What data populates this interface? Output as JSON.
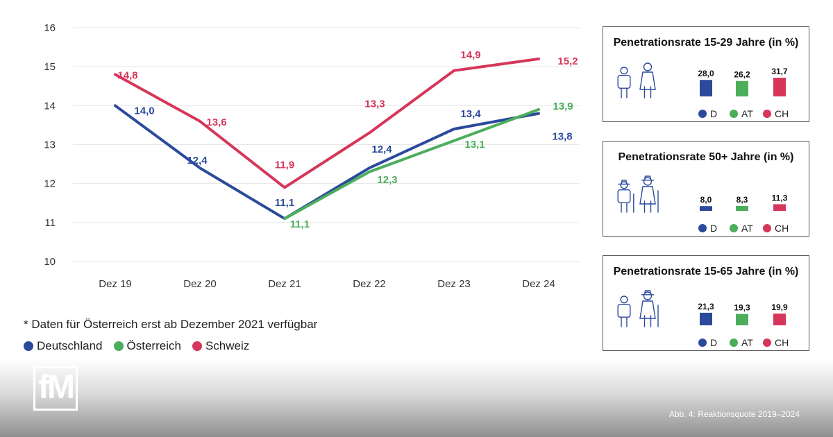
{
  "chart_data": {
    "type": "line",
    "categories": [
      "Dez 19",
      "Dez 20",
      "Dez 21",
      "Dez 22",
      "Dez 23",
      "Dez 24"
    ],
    "ylim": [
      10,
      16
    ],
    "yticks": [
      "10",
      "11",
      "12",
      "13",
      "14",
      "15",
      "16"
    ],
    "grid": true,
    "series": [
      {
        "name": "Deutschland",
        "color": "#2b4a9b",
        "values": [
          14.0,
          12.4,
          11.1,
          12.4,
          13.4,
          13.8
        ],
        "labels": [
          "14,0",
          "12,4",
          "11,1",
          "12,4",
          "13,4",
          "13,8"
        ]
      },
      {
        "name": "Österreich",
        "color": "#4cae5b",
        "values": [
          null,
          null,
          11.1,
          12.3,
          13.1,
          13.9
        ],
        "labels": [
          null,
          null,
          "11,1",
          "12,3",
          "13,1",
          "13,9"
        ]
      },
      {
        "name": "Schweiz",
        "color": "#d6365a",
        "values": [
          14.8,
          13.6,
          11.9,
          13.3,
          14.9,
          15.2
        ],
        "labels": [
          "14,8",
          "13,6",
          "11,9",
          "13,3",
          "14,9",
          "15,2"
        ]
      }
    ]
  },
  "footnote": "* Daten für Österreich erst ab Dezember 2021 verfügbar",
  "legend": [
    "Deutschland",
    "Österreich",
    "Schweiz"
  ],
  "panels": [
    {
      "title": "Penetrationsrate 15-29 Jahre (in %)",
      "icon": "young-people-icon",
      "bars": [
        {
          "key": "D",
          "value": 28.0,
          "label": "28,0"
        },
        {
          "key": "AT",
          "value": 26.2,
          "label": "26,2"
        },
        {
          "key": "CH",
          "value": 31.7,
          "label": "31,7"
        }
      ]
    },
    {
      "title": "Penetrationsrate 50+ Jahre (in %)",
      "icon": "elderly-people-icon",
      "bars": [
        {
          "key": "D",
          "value": 8.0,
          "label": "8,0"
        },
        {
          "key": "AT",
          "value": 8.3,
          "label": "8,3"
        },
        {
          "key": "CH",
          "value": 11.3,
          "label": "11,3"
        }
      ]
    },
    {
      "title": "Penetrationsrate 15-65 Jahre (in %)",
      "icon": "adult-and-elderly-icon",
      "bars": [
        {
          "key": "D",
          "value": 21.3,
          "label": "21,3"
        },
        {
          "key": "AT",
          "value": 19.3,
          "label": "19,3"
        },
        {
          "key": "CH",
          "value": 19.9,
          "label": "19,9"
        }
      ]
    }
  ],
  "mini_legend": [
    "D",
    "AT",
    "CH"
  ],
  "colors": {
    "D": "#2b4a9b",
    "AT": "#4cae5b",
    "CH": "#d6365a"
  },
  "logo_text": "fM",
  "caption": "Abb. 4: Reaktionsquote 2019–2024"
}
